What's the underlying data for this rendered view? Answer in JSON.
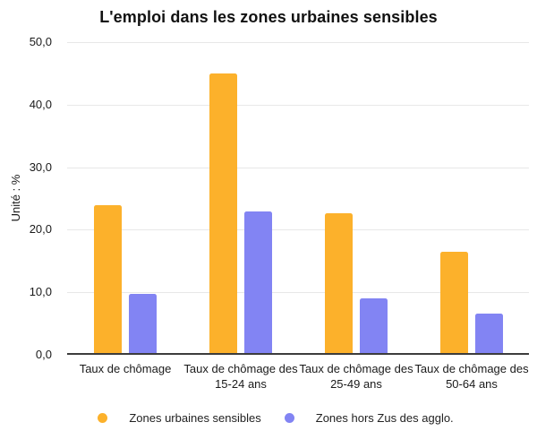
{
  "title": "L'emploi dans les zones urbaines sensibles",
  "chart_data": {
    "type": "bar",
    "title": "L'emploi dans les zones urbaines sensibles",
    "xlabel": "",
    "ylabel": "Unité : %",
    "ylim": [
      0,
      50
    ],
    "ytick_step": 10,
    "ytick_labels": [
      "0,0",
      "10,0",
      "20,0",
      "30,0",
      "40,0",
      "50,0"
    ],
    "grid": true,
    "legend_position": "bottom",
    "categories": [
      "Taux de chômage",
      "Taux de chômage des 15-24 ans",
      "Taux de chômage des 25-49 ans",
      "Taux de chômage des 50-64 ans"
    ],
    "category_lines": [
      [
        "Taux de chômage"
      ],
      [
        "Taux de chômage des",
        "15-24 ans"
      ],
      [
        "Taux de chômage des",
        "25-49 ans"
      ],
      [
        "Taux de chômage des",
        "50-64 ans"
      ]
    ],
    "series": [
      {
        "name": "Zones urbaines sensibles",
        "color": "#FCB12B",
        "values": [
          24.0,
          45.0,
          22.6,
          16.5
        ]
      },
      {
        "name": "Zones hors Zus des agglo.",
        "color": "#8284F3",
        "values": [
          9.8,
          23.0,
          9.0,
          6.6
        ]
      }
    ]
  },
  "colors": {
    "series_1": "#FCB12B",
    "series_2": "#8284F3",
    "gridline": "#e8e8e8",
    "axis_line": "#3c3c3c",
    "text": "#1a1a1a"
  }
}
